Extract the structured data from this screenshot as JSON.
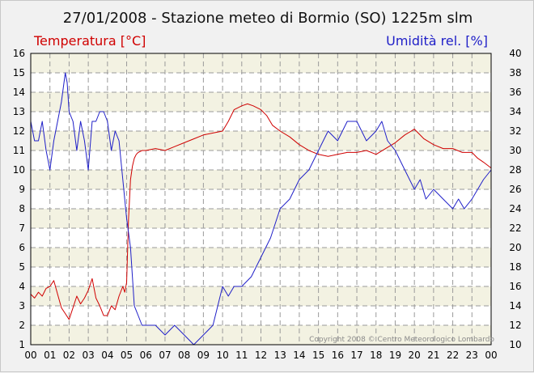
{
  "title": "27/01/2008 - Stazione meteo di Bormio (SO) 1225m slm",
  "colors": {
    "temperature": "#d00000",
    "humidity": "#2020c8",
    "band_light": "#f3f2e2",
    "band_white": "#ffffff",
    "grid": "#9a9a9a",
    "border": "#000000"
  },
  "copyright": "Copyright 2008 © Centro Meteorologico Lombardo",
  "chart_data": {
    "type": "line",
    "title": "27/01/2008 - Stazione meteo di Bormio (SO) 1225m slm",
    "left_axis": {
      "label": "Temperatura [°C]",
      "range": [
        1,
        16
      ],
      "ticks": [
        1,
        2,
        3,
        4,
        5,
        6,
        7,
        8,
        9,
        10,
        11,
        12,
        13,
        14,
        15,
        16
      ]
    },
    "right_axis": {
      "label": "Umidità rel. [%]",
      "range": [
        10,
        40
      ],
      "ticks": [
        10,
        12,
        14,
        16,
        18,
        20,
        22,
        24,
        26,
        28,
        30,
        32,
        34,
        36,
        38,
        40
      ]
    },
    "x_axis": {
      "range": [
        0,
        24
      ],
      "ticks": [
        "00",
        "01",
        "02",
        "03",
        "04",
        "05",
        "06",
        "07",
        "08",
        "09",
        "10",
        "11",
        "12",
        "13",
        "14",
        "15",
        "16",
        "17",
        "18",
        "19",
        "20",
        "21",
        "22",
        "23",
        "00"
      ]
    },
    "grid": true,
    "series": [
      {
        "name": "Temperatura [°C]",
        "axis": "left",
        "x": [
          0,
          0.2,
          0.4,
          0.6,
          0.8,
          1.0,
          1.2,
          1.4,
          1.6,
          1.8,
          2.0,
          2.2,
          2.4,
          2.6,
          2.8,
          3.0,
          3.2,
          3.4,
          3.6,
          3.8,
          4.0,
          4.2,
          4.4,
          4.6,
          4.8,
          4.9,
          5.0,
          5.1,
          5.2,
          5.3,
          5.4,
          5.5,
          5.6,
          5.8,
          6.0,
          6.5,
          7.0,
          7.5,
          8.0,
          8.5,
          9.0,
          9.5,
          10.0,
          10.3,
          10.6,
          11.0,
          11.3,
          11.6,
          12.0,
          12.3,
          12.6,
          13.0,
          13.5,
          14.0,
          14.5,
          15.0,
          15.5,
          16.0,
          16.5,
          17.0,
          17.5,
          18.0,
          18.5,
          19.0,
          19.5,
          20.0,
          20.5,
          21.0,
          21.5,
          22.0,
          22.5,
          23.0,
          23.3,
          23.6,
          24.0
        ],
        "values": [
          3.6,
          3.4,
          3.7,
          3.5,
          3.9,
          4.0,
          4.3,
          3.6,
          2.9,
          2.6,
          2.3,
          2.9,
          3.5,
          3.1,
          3.4,
          3.8,
          4.4,
          3.4,
          3.0,
          2.5,
          2.5,
          3.0,
          2.8,
          3.5,
          4.0,
          3.7,
          4.2,
          7.5,
          9.5,
          10.2,
          10.6,
          10.8,
          10.9,
          11.0,
          11.0,
          11.1,
          11.0,
          11.2,
          11.4,
          11.6,
          11.8,
          11.9,
          12.0,
          12.5,
          13.1,
          13.3,
          13.4,
          13.3,
          13.1,
          12.8,
          12.3,
          12.0,
          11.7,
          11.3,
          11.0,
          10.8,
          10.7,
          10.8,
          10.9,
          10.9,
          11.0,
          10.8,
          11.1,
          11.4,
          11.8,
          12.1,
          11.6,
          11.3,
          11.1,
          11.1,
          10.9,
          10.9,
          10.6,
          10.4,
          10.1
        ]
      },
      {
        "name": "Umidità rel. [%]",
        "axis": "right",
        "x": [
          0,
          0.2,
          0.4,
          0.6,
          0.8,
          1.0,
          1.2,
          1.4,
          1.6,
          1.8,
          1.9,
          2.0,
          2.2,
          2.4,
          2.6,
          2.8,
          3.0,
          3.2,
          3.4,
          3.6,
          3.8,
          4.0,
          4.2,
          4.4,
          4.6,
          4.8,
          5.0,
          5.2,
          5.4,
          5.6,
          5.8,
          6.0,
          6.5,
          7.0,
          7.5,
          8.0,
          8.5,
          9.0,
          9.5,
          10.0,
          10.3,
          10.6,
          11.0,
          11.5,
          12.0,
          12.5,
          13.0,
          13.5,
          14.0,
          14.5,
          15.0,
          15.5,
          16.0,
          16.5,
          17.0,
          17.5,
          18.0,
          18.3,
          18.6,
          19.0,
          19.5,
          20.0,
          20.3,
          20.6,
          21.0,
          21.5,
          22.0,
          22.3,
          22.6,
          23.0,
          23.3,
          23.6,
          24.0
        ],
        "values": [
          33,
          31,
          31,
          33,
          30,
          28,
          31,
          33,
          35,
          38,
          37,
          34,
          33,
          30,
          33,
          31,
          28,
          33,
          33,
          34,
          34,
          33,
          30,
          32,
          31,
          27,
          23,
          20,
          14,
          13,
          12,
          12,
          12,
          11,
          12,
          11,
          10,
          11,
          12,
          16,
          15,
          16,
          16,
          17,
          19,
          21,
          24,
          25,
          27,
          28,
          30,
          32,
          31,
          33,
          33,
          31,
          32,
          33,
          31,
          30,
          28,
          26,
          27,
          25,
          26,
          25,
          24,
          25,
          24,
          25,
          26,
          27,
          28
        ]
      }
    ]
  }
}
